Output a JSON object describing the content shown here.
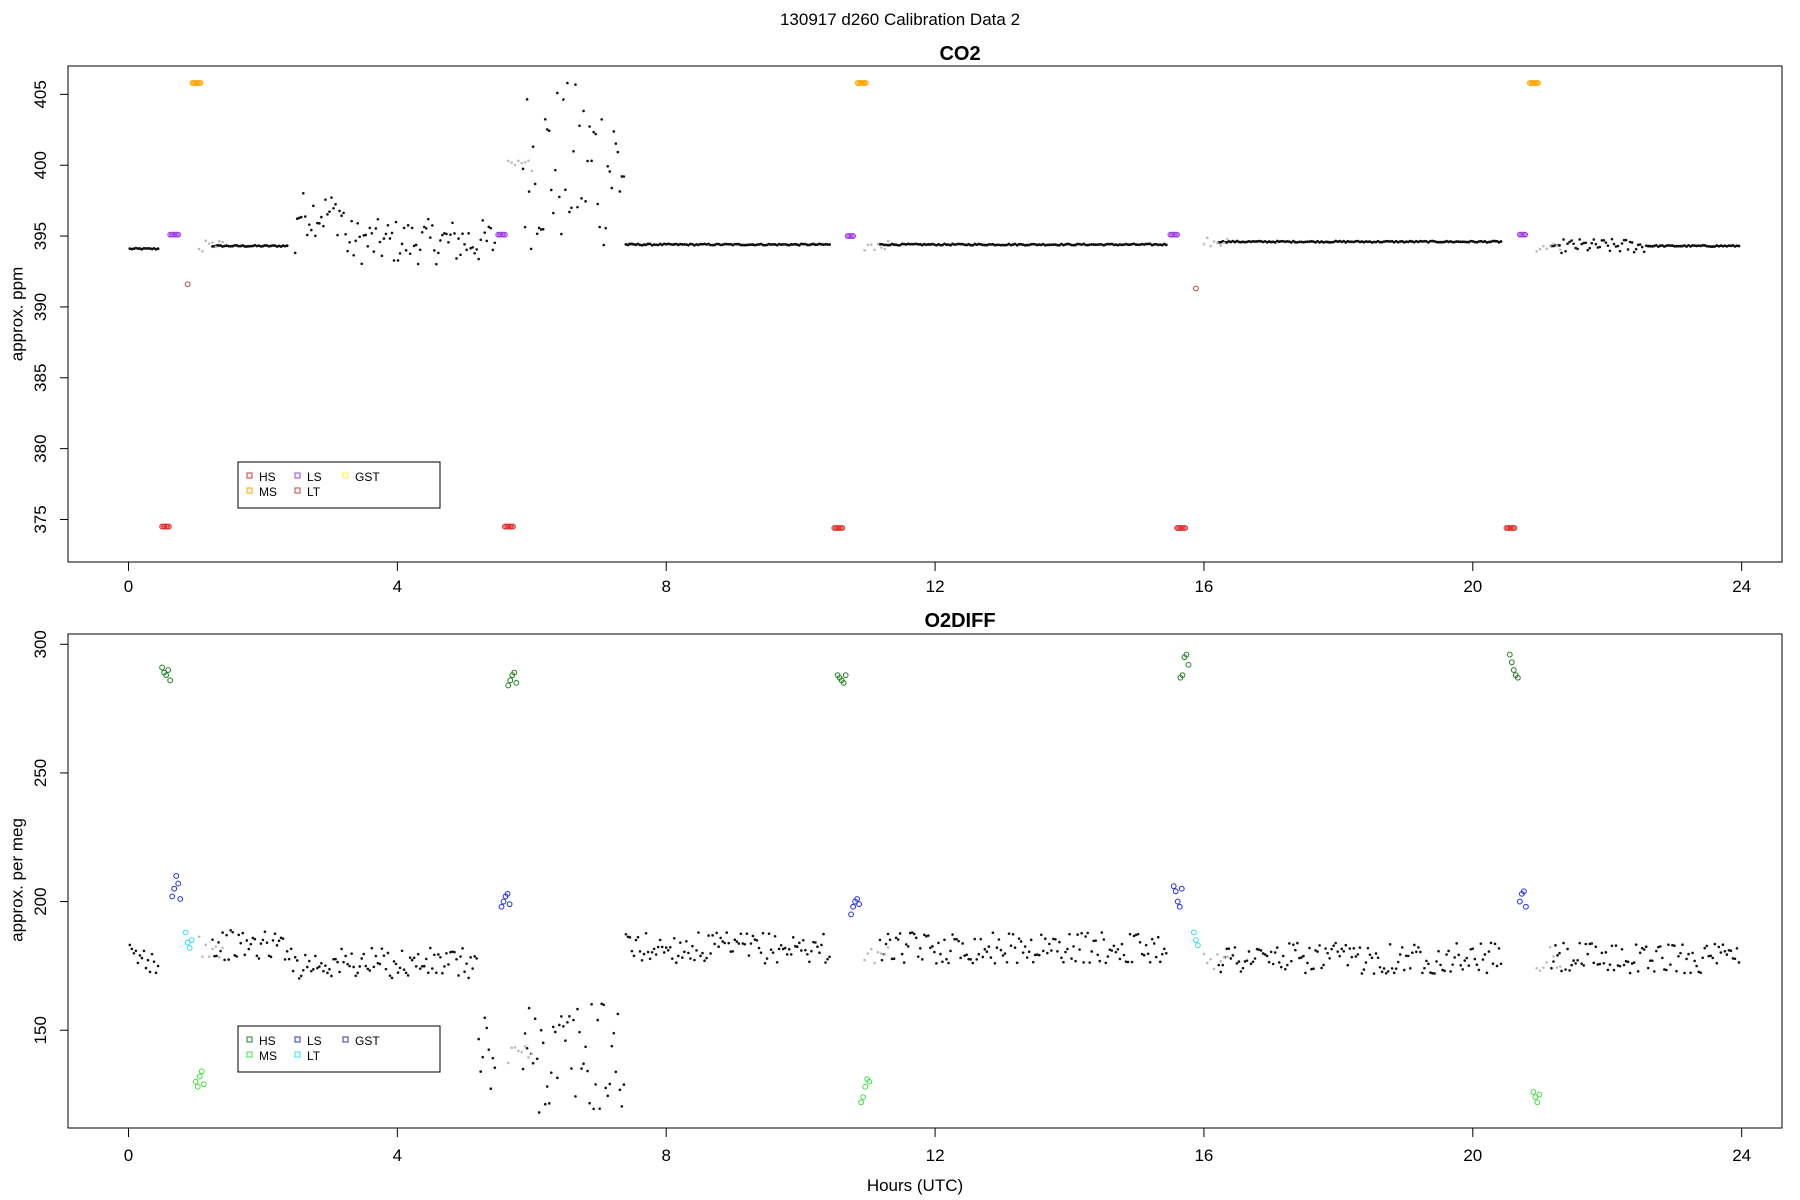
{
  "header": {
    "supertitle": "130917   d260   Calibration Data 2"
  },
  "chart_data": [
    {
      "type": "scatter",
      "title": "CO2",
      "xlabel": "",
      "ylabel": "approx. ppm",
      "xlim": [
        -0.9,
        24.6
      ],
      "ylim": [
        372.0,
        407.0
      ],
      "xticks": [
        0,
        4,
        8,
        12,
        16,
        20,
        24
      ],
      "yticks": [
        375,
        380,
        385,
        390,
        395,
        400,
        405
      ],
      "grid": false,
      "legend_position": "bottom-left",
      "legend": [
        {
          "name": "HS",
          "color": "#e03030"
        },
        {
          "name": "MS",
          "color": "#ffa500"
        },
        {
          "name": "LS",
          "color": "#a040e0"
        },
        {
          "name": "LT",
          "color": "#c04040"
        },
        {
          "name": "GST",
          "color": "#ffee40"
        }
      ],
      "series": [
        {
          "name": "HS",
          "color": "#e03030",
          "x": [
            0.5,
            0.52,
            0.54,
            0.56,
            0.58,
            0.6,
            5.6,
            5.62,
            5.64,
            5.66,
            5.68,
            5.7,
            5.72,
            10.5,
            10.52,
            10.54,
            10.56,
            10.58,
            10.6,
            10.62,
            15.6,
            15.62,
            15.64,
            15.66,
            15.68,
            15.7,
            15.72,
            20.5,
            20.52,
            20.54,
            20.56,
            20.58,
            20.6,
            20.62
          ],
          "values": [
            374.5,
            374.5,
            374.5,
            374.5,
            374.5,
            374.5,
            374.5,
            374.5,
            374.5,
            374.5,
            374.5,
            374.5,
            374.5,
            374.4,
            374.4,
            374.4,
            374.4,
            374.4,
            374.4,
            374.4,
            374.4,
            374.4,
            374.4,
            374.4,
            374.4,
            374.4,
            374.4,
            374.4,
            374.4,
            374.4,
            374.4,
            374.4,
            374.4,
            374.4
          ]
        },
        {
          "name": "MS",
          "color": "#ffa500",
          "x": [
            0.95,
            0.97,
            0.99,
            1.01,
            1.03,
            1.05,
            1.07,
            10.85,
            10.87,
            10.89,
            10.91,
            10.93,
            10.95,
            10.97,
            20.85,
            20.87,
            20.89,
            20.91,
            20.93,
            20.95,
            20.97
          ],
          "values": [
            405.8,
            405.8,
            405.8,
            405.8,
            405.8,
            405.8,
            405.8,
            405.8,
            405.8,
            405.8,
            405.8,
            405.8,
            405.8,
            405.8,
            405.8,
            405.8,
            405.8,
            405.8,
            405.8,
            405.8,
            405.8
          ]
        },
        {
          "name": "LS",
          "color": "#a040e0",
          "x": [
            0.62,
            0.64,
            0.66,
            0.68,
            0.7,
            0.72,
            0.74,
            5.5,
            5.52,
            5.54,
            5.56,
            5.58,
            5.6,
            10.7,
            10.72,
            10.74,
            10.76,
            10.78,
            15.5,
            15.52,
            15.54,
            15.56,
            15.58,
            15.6,
            20.7,
            20.72,
            20.74,
            20.76,
            20.78
          ],
          "values": [
            395.1,
            395.1,
            395.1,
            395.1,
            395.1,
            395.1,
            395.1,
            395.1,
            395.1,
            395.1,
            395.1,
            395.1,
            395.1,
            395.0,
            395.0,
            395.0,
            395.0,
            395.0,
            395.1,
            395.1,
            395.1,
            395.1,
            395.1,
            395.1,
            395.1,
            395.1,
            395.1,
            395.1,
            395.1
          ]
        },
        {
          "name": "LT",
          "color": "#c04040",
          "x": [
            0.88,
            15.88
          ],
          "values": [
            391.6,
            391.3
          ]
        }
      ]
    },
    {
      "type": "scatter",
      "title": "O2DIFF",
      "xlabel": "Hours (UTC)",
      "ylabel": "approx. per meg",
      "xlim": [
        -0.9,
        24.6
      ],
      "ylim": [
        112,
        304
      ],
      "xticks": [
        0,
        4,
        8,
        12,
        16,
        20,
        24
      ],
      "yticks": [
        150,
        200,
        250,
        300
      ],
      "grid": false,
      "legend_position": "bottom-left",
      "legend": [
        {
          "name": "HS",
          "color": "#208020"
        },
        {
          "name": "MS",
          "color": "#40e040"
        },
        {
          "name": "LS",
          "color": "#2030e0"
        },
        {
          "name": "LT",
          "color": "#30e0f0"
        },
        {
          "name": "GST",
          "color": "#3030b0"
        }
      ],
      "series": [
        {
          "name": "HS",
          "color": "#208020",
          "x": [
            0.5,
            0.53,
            0.56,
            0.59,
            0.62,
            5.65,
            5.68,
            5.71,
            5.74,
            5.77,
            10.55,
            10.58,
            10.61,
            10.64,
            10.67,
            15.65,
            15.68,
            15.71,
            15.74,
            15.77,
            20.55,
            20.58,
            20.61,
            20.64,
            20.67
          ],
          "values": [
            291,
            289,
            288,
            290,
            286,
            284,
            286,
            288,
            289,
            285,
            288,
            287,
            286,
            285,
            288,
            287,
            288,
            295,
            296,
            292,
            296,
            293,
            290,
            288,
            287
          ]
        },
        {
          "name": "MS",
          "color": "#40e040",
          "x": [
            1.0,
            1.03,
            1.06,
            1.09,
            1.12,
            10.9,
            10.93,
            10.96,
            10.99,
            11.02,
            20.9,
            20.93,
            20.96,
            20.99
          ],
          "values": [
            130,
            128,
            132,
            134,
            129,
            122,
            124,
            128,
            131,
            130,
            126,
            124,
            122,
            125
          ]
        },
        {
          "name": "LS",
          "color": "#2030e0",
          "x": [
            0.65,
            0.68,
            0.71,
            0.74,
            0.77,
            5.55,
            5.58,
            5.61,
            5.64,
            5.67,
            10.75,
            10.78,
            10.81,
            10.84,
            10.87,
            15.55,
            15.58,
            15.61,
            15.64,
            15.67,
            20.7,
            20.73,
            20.76,
            20.79
          ],
          "values": [
            202,
            205,
            210,
            207,
            201,
            198,
            200,
            202,
            203,
            199,
            195,
            198,
            200,
            201,
            199,
            206,
            204,
            200,
            198,
            205,
            200,
            203,
            204,
            198
          ]
        },
        {
          "name": "LT",
          "color": "#30e0f0",
          "x": [
            0.85,
            0.88,
            0.91,
            0.94,
            15.85,
            15.88,
            15.91
          ],
          "values": [
            188,
            184,
            182,
            185,
            188,
            185,
            183
          ]
        }
      ]
    }
  ]
}
